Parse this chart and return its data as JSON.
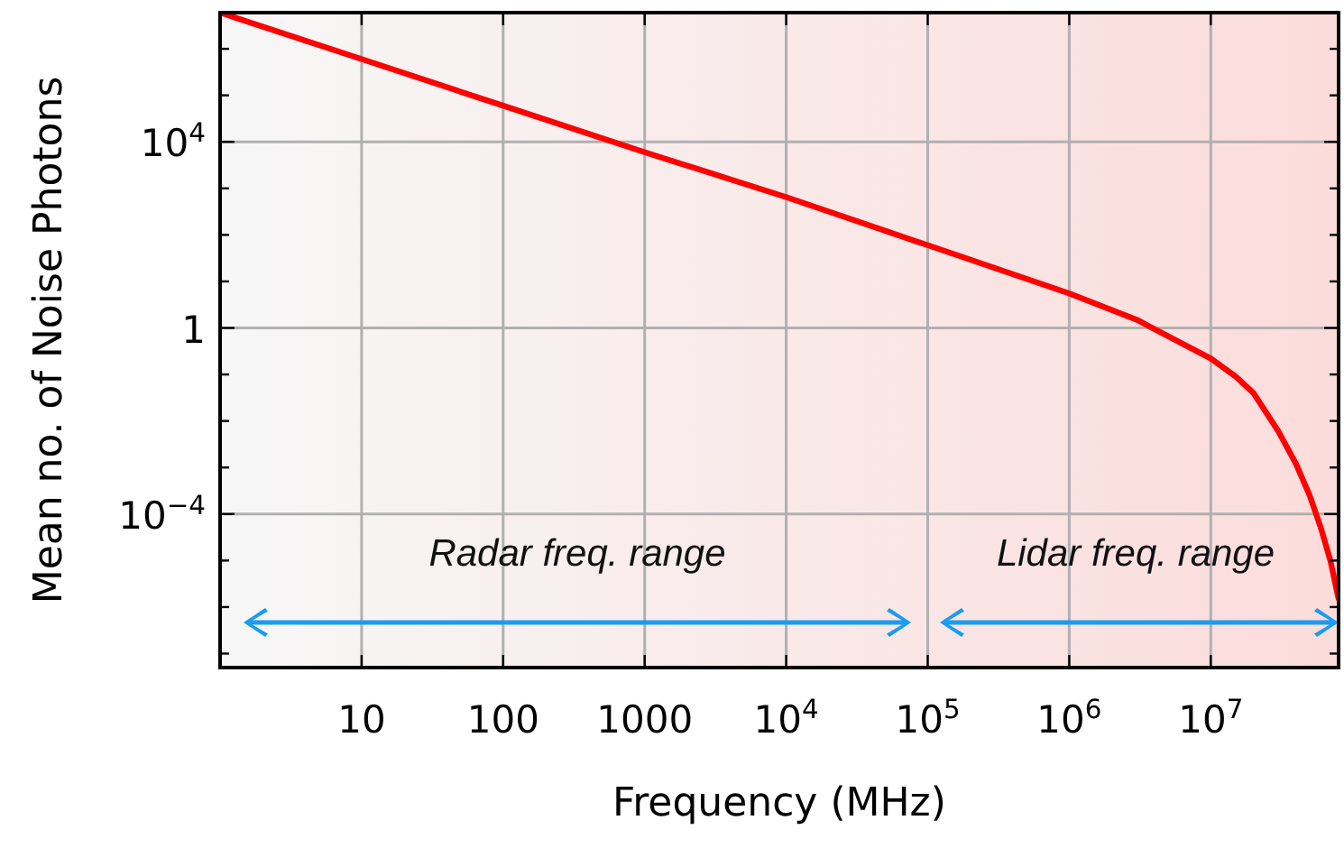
{
  "chart_data": {
    "type": "line",
    "xlabel": "Frequency (MHz)",
    "ylabel": "Mean no. of Noise Photons",
    "log": "xy",
    "grid": true,
    "marker": "none",
    "line_style": "solid",
    "xlim": [
      1,
      80000000
    ],
    "ylim": [
      5e-08,
      6000000
    ],
    "xticks": [
      10,
      100,
      1000,
      {
        "value": 10000,
        "label": "10$^{4}$"
      },
      {
        "value": 100000,
        "label": "10$^{5}$"
      },
      {
        "value": 1000000,
        "label": "10$^{6}$"
      },
      {
        "value": 10000000,
        "label": "10$^{7}$"
      }
    ],
    "yticks": [
      {
        "value": 1e-07,
        "label": null
      },
      {
        "value": 1e-06,
        "label": null
      },
      {
        "value": 1e-05,
        "label": null
      },
      {
        "value": 0.0001,
        "label": "10$^{−4}$"
      },
      {
        "value": 0.001,
        "label": null
      },
      {
        "value": 0.01,
        "label": null
      },
      {
        "value": 0.1,
        "label": null
      },
      1,
      {
        "value": 10,
        "label": null
      },
      {
        "value": 100,
        "label": null
      },
      {
        "value": 1000,
        "label": null
      },
      {
        "value": 10000,
        "label": "10$^{4}$"
      },
      {
        "value": 100000,
        "label": null
      },
      {
        "value": 1000000,
        "label": null
      }
    ],
    "series": [
      {
        "color": "#ff0000",
        "x": [
          1,
          10,
          100,
          1000,
          10000,
          100000,
          1000000,
          3000000,
          10000000,
          15000000,
          20000000,
          30000000,
          40000000,
          50000000,
          60000000,
          70000000,
          80000000
        ],
        "values": [
          6000000,
          600000,
          60000,
          6000,
          650,
          60,
          5.5,
          1.5,
          0.22,
          0.09,
          0.04,
          0.006,
          0.0012,
          0.00025,
          5e-05,
          1e-05,
          1.5e-06
        ]
      }
    ],
    "annotations": [
      "Radar freq. range",
      "Lidar freq. range"
    ]
  }
}
